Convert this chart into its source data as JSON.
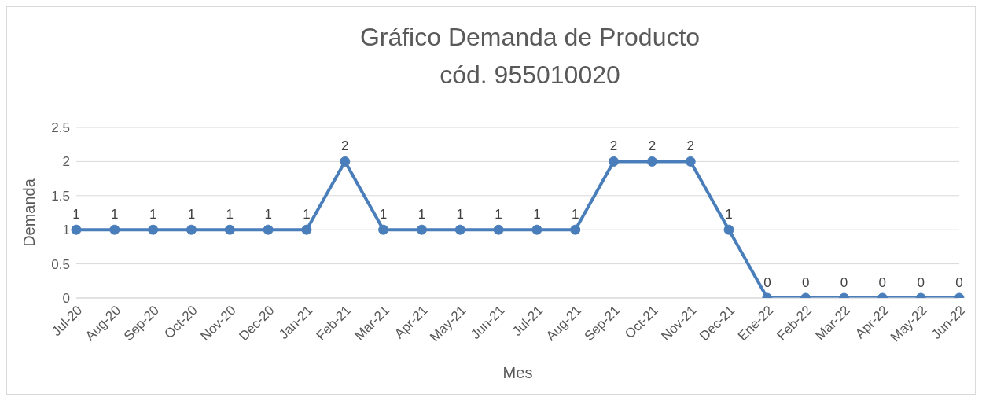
{
  "chart_data": {
    "type": "line",
    "title": "Gráfico Demanda de Producto\ncód. 955010020",
    "xlabel": "Mes",
    "ylabel": "Demanda",
    "categories": [
      "Jul-20",
      "Aug-20",
      "Sep-20",
      "Oct-20",
      "Nov-20",
      "Dec-20",
      "Jan-21",
      "Feb-21",
      "Mar-21",
      "Apr-21",
      "May-21",
      "Jun-21",
      "Jul-21",
      "Aug-21",
      "Sep-21",
      "Oct-21",
      "Nov-21",
      "Dec-21",
      "Ene-22",
      "Feb-22",
      "Mar-22",
      "Apr-22",
      "May-22",
      "Jun-22"
    ],
    "series": [
      {
        "color": "#4a7ebb",
        "values": [
          1,
          1,
          1,
          1,
          1,
          1,
          1,
          2,
          1,
          1,
          1,
          1,
          1,
          1,
          2,
          2,
          2,
          1,
          0,
          0,
          0,
          0,
          0,
          0
        ]
      }
    ],
    "ylim": [
      0,
      2.5
    ],
    "yticks": [
      0,
      0.5,
      1,
      1.5,
      2,
      2.5
    ],
    "grid": "y",
    "legend": false,
    "data_labels": true,
    "marker": "circle",
    "line_style": "solid"
  }
}
